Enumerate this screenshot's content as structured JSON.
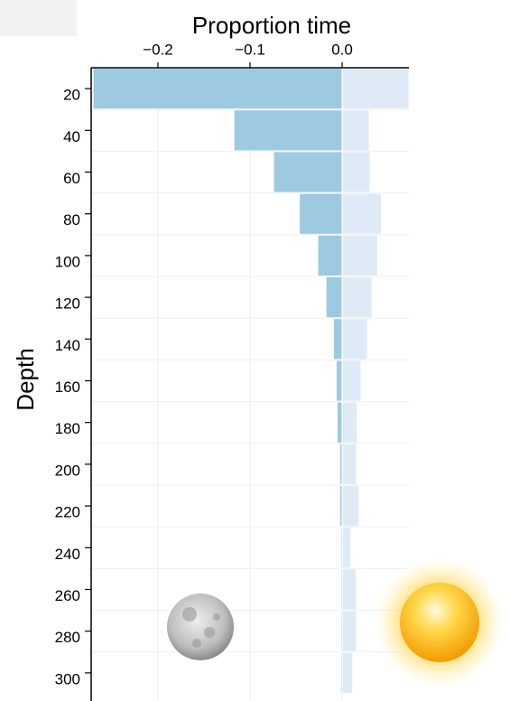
{
  "chart_data": {
    "type": "bar",
    "orientation": "horizontal",
    "title": "Proportion time",
    "y_label": "Depth",
    "categories": [
      "20",
      "40",
      "60",
      "80",
      "100",
      "120",
      "140",
      "160",
      "180",
      "200",
      "220",
      "240",
      "260",
      "280",
      "300"
    ],
    "series": [
      {
        "color": "#9ecae1",
        "values": [
          -0.27,
          -0.117,
          -0.074,
          -0.046,
          -0.026,
          -0.017,
          -0.009,
          -0.006,
          -0.005,
          -0.002,
          -0.002,
          -0.001,
          -0.001,
          -0.001,
          -0.001
        ]
      },
      {
        "color": "#deebf7",
        "values": [
          0.072,
          0.029,
          0.03,
          0.042,
          0.038,
          0.032,
          0.027,
          0.02,
          0.016,
          0.015,
          0.018,
          0.009,
          0.015,
          0.015,
          0.011
        ]
      }
    ],
    "xlim": [
      -0.2725,
      0.0725
    ],
    "xticks": [
      {
        "value": -0.2,
        "label": "−0.2"
      },
      {
        "value": -0.1,
        "label": "−0.1"
      },
      {
        "value": 0,
        "label": "0.0"
      }
    ],
    "grid": true
  }
}
